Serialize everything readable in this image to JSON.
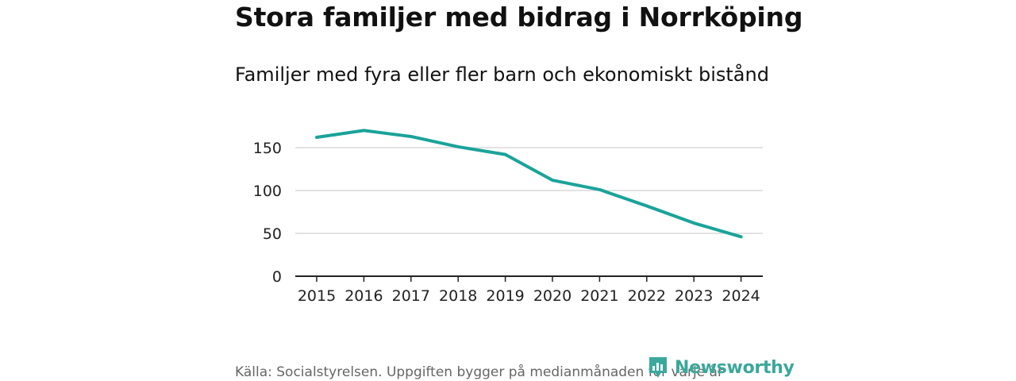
{
  "title": "Stora familjer med bidrag i Norrköping",
  "subtitle": "Familjer med fyra eller fler barn och ekonomiskt bistånd",
  "source": "Källa: Socialstyrelsen. Uppgiften bygger på medianmånaden för varje år",
  "brand": {
    "name": "Newsworthy",
    "color": "#3aa89b"
  },
  "line_color": "#1aa39a",
  "chart_data": {
    "type": "line",
    "title": "Stora familjer med bidrag i Norrköping",
    "subtitle": "Familjer med fyra eller fler barn och ekonomiskt bistånd",
    "xlabel": "",
    "ylabel": "",
    "categories": [
      "2015",
      "2016",
      "2017",
      "2018",
      "2019",
      "2020",
      "2021",
      "2022",
      "2023",
      "2024"
    ],
    "series": [
      {
        "name": "Familjer med fyra eller fler barn och ekonomiskt bistånd",
        "values": [
          162,
          170,
          163,
          151,
          142,
          112,
          101,
          82,
          62,
          46
        ]
      }
    ],
    "ylim": [
      0,
      170
    ],
    "yticks": [
      0,
      50,
      100,
      150
    ],
    "grid": true
  }
}
